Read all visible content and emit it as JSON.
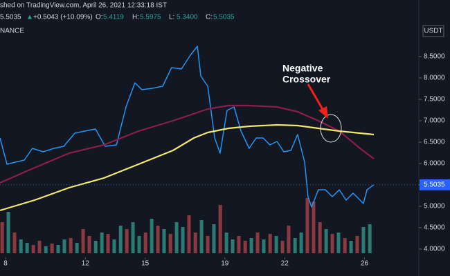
{
  "header": {
    "published": "shed on TradingView.com, April 26, 2021 12:33:18 IST",
    "last": "5.5035",
    "arrow": "▲",
    "change": "+0.5043 (+10.09%)",
    "ohlc": [
      {
        "label": "O:",
        "value": "5.4119"
      },
      {
        "label": "H:",
        "value": "5.5975"
      },
      {
        "label": "L:",
        "value": "5.3400"
      },
      {
        "label": "C:",
        "value": "5.5035"
      }
    ],
    "exchange": "NANCE",
    "currency": "USDT"
  },
  "chart_data": {
    "type": "line",
    "annotation": [
      "Negative",
      "Crossover"
    ],
    "xlim": [
      7.72,
      28.73
    ],
    "xticks": [
      8,
      12,
      15,
      19,
      22,
      26
    ],
    "ylim": [
      3.903,
      9.339
    ],
    "yticks": [
      {
        "value": 4,
        "label": "4.0000"
      },
      {
        "value": 4.5,
        "label": "4.5000"
      },
      {
        "value": 5,
        "label": "5.0000"
      },
      {
        "value": 5.5,
        "label": "5.5000"
      },
      {
        "value": 6,
        "label": "6.0000"
      },
      {
        "value": 6.5,
        "label": "6.5000"
      },
      {
        "value": 7,
        "label": "7.0000"
      },
      {
        "value": 7.5,
        "label": "7.5000"
      },
      {
        "value": 8,
        "label": "8.0000"
      },
      {
        "value": 8.5,
        "label": "8.5000"
      }
    ],
    "y2lim": [
      0,
      337
    ],
    "series": [
      {
        "color": "#2196f3",
        "x": [
          7.72,
          8.07,
          8.49,
          8.94,
          9.35,
          9.88,
          10.43,
          10.92,
          11.47,
          11.96,
          12.51,
          13.0,
          13.56,
          14.04,
          14.49,
          14.84,
          15.36,
          15.88,
          16.33,
          16.82,
          17.27,
          17.62,
          17.79,
          18.14,
          18.49,
          18.76,
          19.11,
          19.46,
          19.81,
          20.22,
          20.57,
          20.92,
          21.26,
          21.61,
          21.96,
          22.31,
          22.65,
          23.0,
          23.17,
          23.35,
          23.69,
          24.04,
          24.39,
          24.74,
          25.08,
          25.43,
          25.78,
          25.95,
          26.13,
          26.47
        ],
        "values": [
          6.597,
          5.984,
          6.032,
          6.081,
          6.355,
          6.274,
          6.355,
          6.403,
          6.71,
          6.758,
          6.806,
          6.403,
          6.435,
          7.323,
          7.887,
          7.726,
          7.758,
          7.806,
          8.242,
          8.21,
          8.532,
          8.742,
          8.048,
          7.806,
          6.597,
          6.242,
          7.242,
          7.323,
          6.758,
          6.355,
          6.597,
          6.597,
          6.435,
          6.516,
          6.274,
          6.306,
          6.677,
          6.032,
          5.226,
          4.984,
          5.387,
          5.387,
          5.226,
          5.387,
          5.145,
          5.306,
          5.145,
          5.065,
          5.387,
          5.5035
        ]
      },
      {
        "color": "#8c1d4f",
        "x": [
          7.72,
          9.46,
          11.19,
          12.93,
          14.67,
          16.4,
          18.14,
          19.18,
          20.22,
          21.61,
          22.65,
          23.69,
          24.74,
          25.78,
          26.47
        ],
        "values": [
          5.548,
          5.903,
          6.242,
          6.435,
          6.758,
          7.0,
          7.274,
          7.355,
          7.355,
          7.323,
          7.21,
          7.0,
          6.758,
          6.355,
          6.113
        ]
      },
      {
        "color": "#f3e86b",
        "x": [
          7.72,
          9.46,
          11.19,
          12.93,
          14.67,
          16.4,
          17.44,
          18.14,
          19.18,
          20.22,
          21.61,
          22.65,
          23.69,
          24.74,
          25.78,
          26.47
        ],
        "values": [
          4.903,
          5.145,
          5.435,
          5.661,
          5.984,
          6.306,
          6.597,
          6.726,
          6.823,
          6.871,
          6.903,
          6.887,
          6.823,
          6.758,
          6.71,
          6.677
        ]
      },
      {
        "type": "bar",
        "axis": "y2",
        "x": [
          7.83,
          8.14,
          8.45,
          8.77,
          9.08,
          9.39,
          9.7,
          10.02,
          10.33,
          10.64,
          10.95,
          11.27,
          11.58,
          11.89,
          12.2,
          12.52,
          12.83,
          13.14,
          13.45,
          13.77,
          14.08,
          14.39,
          14.7,
          15.02,
          15.33,
          15.64,
          15.95,
          16.27,
          16.58,
          16.89,
          17.2,
          17.52,
          17.83,
          18.14,
          18.45,
          18.77,
          19.08,
          19.39,
          19.7,
          20.02,
          20.33,
          20.64,
          20.95,
          21.27,
          21.58,
          21.89,
          22.2,
          22.52,
          22.83,
          23.14,
          23.45,
          23.77,
          24.08,
          24.39,
          24.7,
          25.02,
          25.33,
          25.64,
          25.95,
          26.27
        ],
        "values": [
          45,
          60,
          30,
          20,
          15,
          12,
          18,
          10,
          14,
          12,
          20,
          22,
          15,
          35,
          25,
          18,
          30,
          28,
          20,
          40,
          35,
          45,
          25,
          30,
          50,
          40,
          35,
          28,
          45,
          38,
          55,
          30,
          48,
          25,
          42,
          70,
          30,
          20,
          25,
          18,
          22,
          30,
          20,
          28,
          25,
          18,
          40,
          22,
          30,
          80,
          75,
          45,
          35,
          28,
          30,
          22,
          18,
          25,
          38,
          42
        ],
        "colors": [
          "#8b3a41",
          "#2b7a73",
          "#8b3a41",
          "#2b7a73",
          "#2b7a73",
          "#8b3a41",
          "#8b3a41",
          "#2b7a73",
          "#8b3a41",
          "#2b7a73",
          "#2b7a73",
          "#8b3a41",
          "#2b7a73",
          "#8b3a41",
          "#8b3a41",
          "#2b7a73",
          "#2b7a73",
          "#8b3a41",
          "#2b7a73",
          "#2b7a73",
          "#8b3a41",
          "#2b7a73",
          "#2b7a73",
          "#8b3a41",
          "#2b7a73",
          "#8b3a41",
          "#2b7a73",
          "#8b3a41",
          "#2b7a73",
          "#2b7a73",
          "#8b3a41",
          "#8b3a41",
          "#2b7a73",
          "#8b3a41",
          "#2b7a73",
          "#8b3a41",
          "#2b7a73",
          "#2b7a73",
          "#8b3a41",
          "#8b3a41",
          "#2b7a73",
          "#8b3a41",
          "#2b7a73",
          "#8b3a41",
          "#2b7a73",
          "#8b3a41",
          "#8b3a41",
          "#2b7a73",
          "#2b7a73",
          "#8b3a41",
          "#8b3a41",
          "#8b3a41",
          "#2b7a73",
          "#8b3a41",
          "#2b7a73",
          "#8b3a41",
          "#2b7a73",
          "#8b3a41",
          "#2b7a73",
          "#2b7a73"
        ]
      }
    ]
  }
}
